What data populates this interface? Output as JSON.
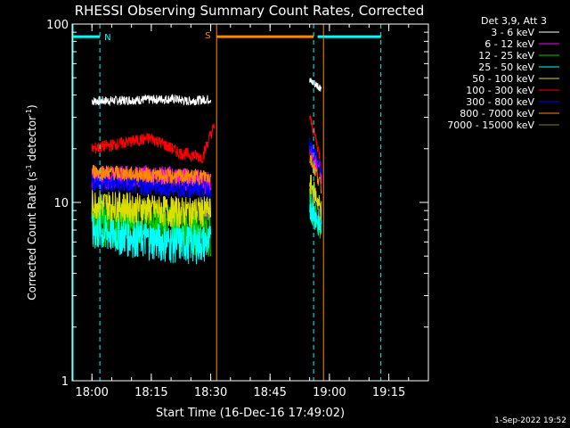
{
  "chart_data": {
    "type": "line",
    "title": "RHESSI Observing Summary Count Rates, Corrected",
    "xlabel": "Start Time (16-Dec-16 17:49:02)",
    "ylabel_main": "Corrected Count Rate (s",
    "ylabel_sup1": "-1",
    "ylabel_mid": " detector",
    "ylabel_sup2": "-1",
    "ylabel_end": ")",
    "yscale": "log",
    "ylim": [
      1,
      100
    ],
    "xlim_minutes": [
      -55,
      35
    ],
    "x_tick_labels": [
      "18:00",
      "18:15",
      "18:30",
      "18:45",
      "19:00",
      "19:15"
    ],
    "x_ticks_minutes": [
      -50,
      -35,
      -20,
      -5,
      10,
      25
    ],
    "y_tick_labels": [
      "1",
      "10",
      "100"
    ],
    "y_ticks": [
      1,
      10,
      100
    ],
    "legend_header": "Det 3,9, Att 3",
    "legend_position": "top-right",
    "series": [
      {
        "name": "3 - 6 keV",
        "color": "#ffffff",
        "segments": [
          {
            "x": [
              -50,
              -31,
              -29,
              -26,
              -20
            ],
            "y": [
              37,
              38,
              38,
              37,
              38
            ],
            "noise": 0.06
          },
          {
            "x": [
              5,
              8
            ],
            "y": [
              48,
              44
            ],
            "noise": 0.06
          }
        ]
      },
      {
        "name": "6 - 12 keV",
        "color": "#ff00ff",
        "segments": [
          {
            "x": [
              -50,
              -30,
              -20
            ],
            "y": [
              14,
              14,
              13
            ],
            "noise": 0.15
          },
          {
            "x": [
              5,
              8
            ],
            "y": [
              20,
              14
            ],
            "noise": 0.1
          }
        ]
      },
      {
        "name": "12 - 25 keV",
        "color": "#00cc00",
        "segments": [
          {
            "x": [
              -50,
              -30,
              -20
            ],
            "y": [
              8,
              7.5,
              7
            ],
            "noise": 0.3
          },
          {
            "x": [
              5,
              8
            ],
            "y": [
              10,
              7
            ],
            "noise": 0.2
          }
        ]
      },
      {
        "name": "25 - 50 keV",
        "color": "#00ffff",
        "segments": [
          {
            "x": [
              -50,
              -30,
              -20
            ],
            "y": [
              7,
              6,
              6
            ],
            "noise": 0.25
          },
          {
            "x": [
              5,
              8
            ],
            "y": [
              10,
              7
            ],
            "noise": 0.2
          }
        ]
      },
      {
        "name": "50 - 100 keV",
        "color": "#dddd00",
        "segments": [
          {
            "x": [
              -50,
              -30,
              -20
            ],
            "y": [
              10,
              9,
              9
            ],
            "noise": 0.2
          },
          {
            "x": [
              5,
              8
            ],
            "y": [
              13,
              9
            ],
            "noise": 0.15
          }
        ]
      },
      {
        "name": "100 - 300 keV",
        "color": "#ff0000",
        "segments": [
          {
            "x": [
              -50,
              -40,
              -35,
              -28,
              -22,
              -19
            ],
            "y": [
              20,
              22,
              23,
              19,
              18,
              27
            ],
            "noise": 0.08
          },
          {
            "x": [
              5,
              8
            ],
            "y": [
              30,
              16
            ],
            "noise": 0.08
          }
        ]
      },
      {
        "name": "300 - 800 keV",
        "color": "#0000ff",
        "segments": [
          {
            "x": [
              -50,
              -30,
              -20
            ],
            "y": [
              13,
              12,
              12
            ],
            "noise": 0.12
          },
          {
            "x": [
              5,
              8
            ],
            "y": [
              21,
              15
            ],
            "noise": 0.1
          }
        ]
      },
      {
        "name": "800 - 7000 keV",
        "color": "#ff8800",
        "segments": [
          {
            "x": [
              -50,
              -30,
              -20
            ],
            "y": [
              15,
              14,
              14
            ],
            "noise": 0.1
          },
          {
            "x": [
              5,
              8
            ],
            "y": [
              18,
              12
            ],
            "noise": 0.1
          }
        ]
      },
      {
        "name": "7000 - 15000 keV",
        "color": "#888800",
        "segments": []
      }
    ],
    "annotations": {
      "night_label": "N",
      "saa_label": "S",
      "night_color": "#00ffff",
      "saa_color": "#ff8800",
      "night_bars": [
        [
          -55,
          -48
        ],
        [
          7,
          23
        ]
      ],
      "saa_bar": [
        -18.5,
        6
      ],
      "bar_y": 85,
      "night_dashed_x": [
        -48,
        6,
        23
      ],
      "night_solid_x": [
        -55
      ],
      "saa_solid_x": [
        -18.5,
        8.5
      ],
      "data_gap_start": -19
    },
    "timestamp": "1-Sep-2022 19:52"
  }
}
